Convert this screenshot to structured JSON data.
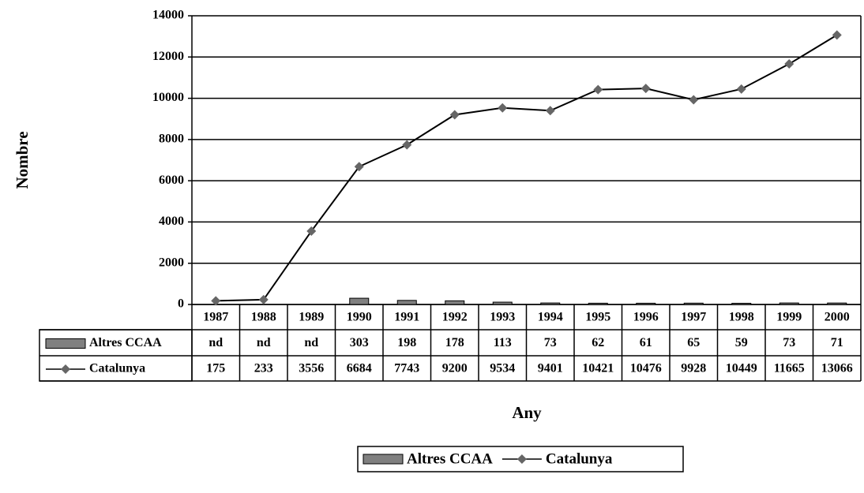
{
  "chart_data": {
    "type": "bar-line",
    "y_label": "Nombre",
    "x_label": "Any",
    "categories": [
      "1987",
      "1988",
      "1989",
      "1990",
      "1991",
      "1992",
      "1993",
      "1994",
      "1995",
      "1996",
      "1997",
      "1998",
      "1999",
      "2000"
    ],
    "series": [
      {
        "name": "Altres CCAA",
        "type": "bar",
        "color": "#808080",
        "values": [
          null,
          null,
          null,
          303,
          198,
          178,
          113,
          73,
          62,
          61,
          65,
          59,
          73,
          71
        ],
        "value_labels": [
          "nd",
          "nd",
          "nd",
          "303",
          "198",
          "178",
          "113",
          "73",
          "62",
          "61",
          "65",
          "59",
          "73",
          "71"
        ]
      },
      {
        "name": "Catalunya",
        "type": "line",
        "color": "#000000",
        "marker_color": "#666666",
        "values": [
          175,
          233,
          3556,
          6684,
          7743,
          9200,
          9534,
          9401,
          10421,
          10476,
          9928,
          10449,
          11665,
          13066
        ]
      }
    ],
    "ylim": [
      0,
      14000
    ],
    "yticks": [
      0,
      2000,
      4000,
      6000,
      8000,
      10000,
      12000,
      14000
    ],
    "grid": true,
    "legend": "bottom"
  }
}
